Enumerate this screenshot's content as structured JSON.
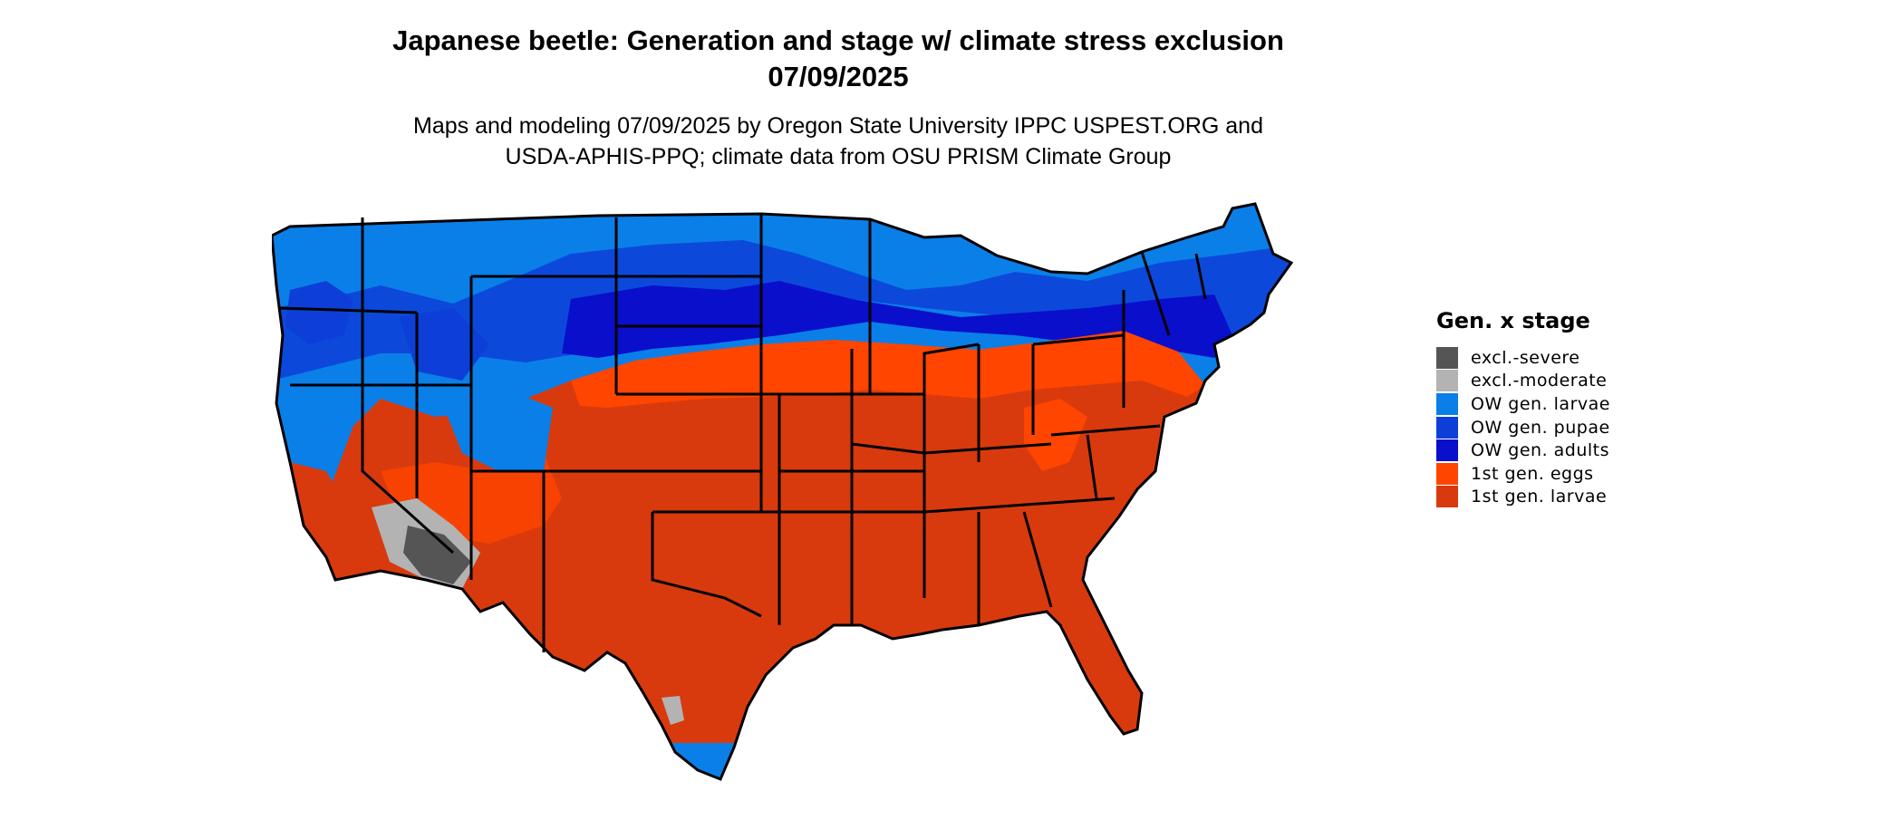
{
  "title_line1": "Japanese beetle: Generation and stage w/ climate stress exclusion",
  "title_line2": "07/09/2025",
  "subtitle_line1": "Maps and modeling 07/09/2025 by Oregon State University IPPC USPEST.ORG and",
  "subtitle_line2": "USDA-APHIS-PPQ; climate data from OSU PRISM Climate Group",
  "legend": {
    "title": "Gen. x stage",
    "items": [
      {
        "label": "excl.-severe",
        "color": "#555555"
      },
      {
        "label": "excl.-moderate",
        "color": "#b3b3b3"
      },
      {
        "label": "OW gen. larvae",
        "color": "#0a7fe8"
      },
      {
        "label": "OW gen. pupae",
        "color": "#0d3fd8"
      },
      {
        "label": "OW gen. adults",
        "color": "#0a0fcc"
      },
      {
        "label": "1st gen. eggs",
        "color": "#ff4500"
      },
      {
        "label": "1st gen. larvae",
        "color": "#d83a0e"
      }
    ]
  }
}
